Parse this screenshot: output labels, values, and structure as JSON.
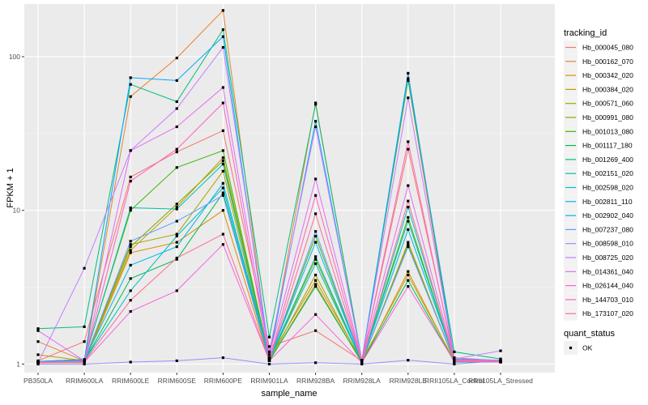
{
  "chart_data": {
    "type": "line",
    "title": "",
    "xlabel": "sample_name",
    "ylabel": "FPKM + 1",
    "y_scale": "log10",
    "ylim": [
      0.88,
      220
    ],
    "y_ticks": [
      1,
      10,
      100
    ],
    "y_tick_labels": [
      "1",
      "10",
      "100"
    ],
    "grid": true,
    "legend_position": "right",
    "categories": [
      "PB350LA",
      "RRIM600LA",
      "RRIM600LE",
      "RRIM600SE",
      "RRIM600PE",
      "RRIM901LA",
      "RRIM928BA",
      "RRIM928LA",
      "RRIM928LE",
      "RRII105LA_Control",
      "RRII105LA_Stressed"
    ],
    "color_legend_title": "tracking_id",
    "shape_legend_title": "quant_status",
    "shape_legend_entries": [
      {
        "label": "OK",
        "shape": "square"
      }
    ],
    "series": [
      {
        "name": "Hb_000045_080",
        "color": "#F8766D",
        "values": [
          1.05,
          1.4,
          16.5,
          24,
          33,
          1.3,
          1.65,
          1.05,
          25,
          1.1,
          1.05
        ]
      },
      {
        "name": "Hb_000162_070",
        "color": "#EA8331",
        "values": [
          1.4,
          1.05,
          55,
          98,
          200,
          1.1,
          50,
          1.05,
          70,
          1.05,
          1.05
        ]
      },
      {
        "name": "Hb_000342_020",
        "color": "#D89000",
        "values": [
          1.02,
          1.02,
          5.3,
          6.2,
          10,
          1.05,
          3.3,
          1.02,
          4.0,
          1.03,
          1.03
        ]
      },
      {
        "name": "Hb_000384_020",
        "color": "#C09B00",
        "values": [
          1.15,
          1.05,
          5.5,
          10.5,
          22,
          1.1,
          3.5,
          1.05,
          3.8,
          1.05,
          1.05
        ]
      },
      {
        "name": "Hb_000571_060",
        "color": "#A3A500",
        "values": [
          1.02,
          1.05,
          6.0,
          7.0,
          18,
          1.05,
          3.8,
          1.02,
          6.2,
          1.04,
          1.03
        ]
      },
      {
        "name": "Hb_000991_080",
        "color": "#7CAE00",
        "values": [
          1.03,
          1.06,
          5.8,
          11,
          21,
          1.07,
          4.8,
          1.03,
          6.0,
          1.04,
          1.04
        ]
      },
      {
        "name": "Hb_001013_080",
        "color": "#39B600",
        "values": [
          1.04,
          1.07,
          10,
          19,
          24.5,
          1.08,
          6.8,
          1.04,
          9.0,
          1.05,
          1.04
        ]
      },
      {
        "name": "Hb_001117_180",
        "color": "#00BB4E",
        "values": [
          1.02,
          1.04,
          3.6,
          4.8,
          13,
          1.05,
          3.2,
          1.03,
          3.5,
          1.03,
          1.03
        ]
      },
      {
        "name": "Hb_001269_400",
        "color": "#00BF7D",
        "values": [
          1.7,
          1.75,
          66,
          51,
          150,
          1.5,
          49,
          1.06,
          72,
          1.2,
          1.08
        ]
      },
      {
        "name": "Hb_002151_020",
        "color": "#00C1A3",
        "values": [
          1.03,
          1.06,
          10.4,
          10.2,
          20,
          1.08,
          5.0,
          1.04,
          8.5,
          1.06,
          1.05
        ]
      },
      {
        "name": "Hb_002598_020",
        "color": "#00BFC4",
        "values": [
          1.03,
          1.05,
          3.0,
          6.8,
          14,
          1.07,
          4.5,
          1.04,
          10.5,
          1.06,
          1.05
        ]
      },
      {
        "name": "Hb_002811_110",
        "color": "#00B8E7",
        "values": [
          1.03,
          1.06,
          4.4,
          5.8,
          15,
          1.08,
          6.2,
          1.04,
          7.5,
          1.07,
          1.05
        ]
      },
      {
        "name": "Hb_002902_040",
        "color": "#00A9FF",
        "values": [
          1.04,
          1.07,
          73,
          70,
          135,
          1.1,
          38,
          1.05,
          78,
          1.08,
          1.06
        ]
      },
      {
        "name": "Hb_007237_080",
        "color": "#619CFF",
        "values": [
          1.03,
          1.05,
          6.3,
          8.5,
          12.5,
          1.07,
          7.3,
          1.04,
          5.8,
          1.06,
          1.05
        ]
      },
      {
        "name": "Hb_008598_010",
        "color": "#9590FF",
        "values": [
          1.0,
          1.0,
          1.03,
          1.05,
          1.1,
          1.0,
          1.02,
          1.0,
          1.06,
          1.0,
          1.05
        ]
      },
      {
        "name": "Hb_008725_020",
        "color": "#C77CFF",
        "values": [
          1.02,
          4.2,
          24.5,
          46,
          115,
          1.2,
          35,
          1.06,
          54,
          1.08,
          1.22
        ]
      },
      {
        "name": "Hb_014361_040",
        "color": "#E76BF3",
        "values": [
          1.65,
          1.05,
          24.5,
          35,
          63,
          1.15,
          16,
          1.06,
          14.5,
          1.07,
          1.06
        ]
      },
      {
        "name": "Hb_026144_040",
        "color": "#FA62DB",
        "values": [
          1.02,
          1.03,
          2.2,
          3.0,
          6.0,
          1.05,
          2.1,
          1.02,
          3.2,
          1.04,
          1.03
        ]
      },
      {
        "name": "Hb_144703_010",
        "color": "#FF62BC",
        "values": [
          1.03,
          1.04,
          15.5,
          25,
          50,
          1.07,
          12.5,
          1.03,
          28,
          1.05,
          1.04
        ]
      },
      {
        "name": "Hb_173107_020",
        "color": "#FF6C91",
        "values": [
          1.02,
          1.04,
          2.6,
          4.9,
          7.0,
          1.06,
          9.5,
          1.03,
          11.5,
          1.05,
          1.04
        ]
      }
    ]
  }
}
